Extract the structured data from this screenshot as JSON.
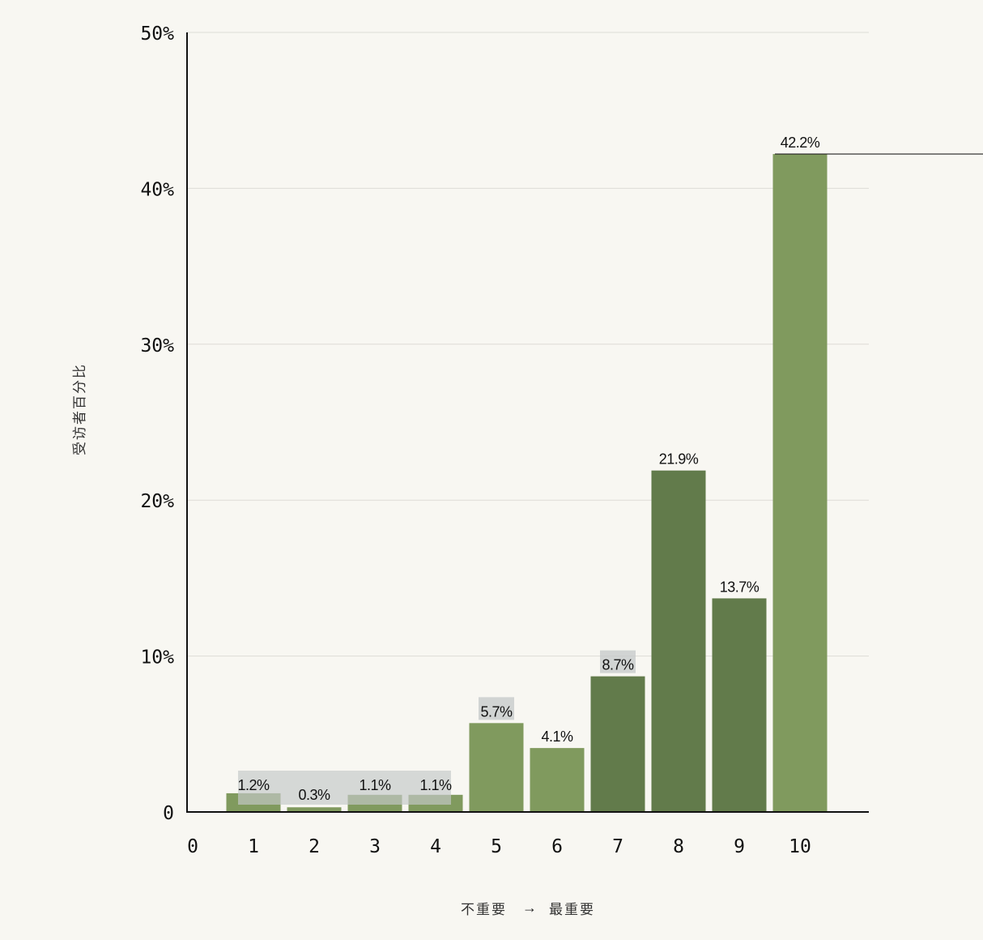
{
  "chart_data": {
    "type": "bar",
    "categories": [
      "1",
      "2",
      "3",
      "4",
      "5",
      "6",
      "7",
      "8",
      "9",
      "10"
    ],
    "values": [
      1.2,
      0.3,
      1.1,
      1.1,
      5.7,
      4.1,
      8.7,
      21.9,
      13.7,
      42.2
    ],
    "data_labels": [
      "1.2%",
      "0.3%",
      "1.1%",
      "1.1%",
      "5.7%",
      "4.1%",
      "8.7%",
      "21.9%",
      "13.7%",
      "42.2%"
    ],
    "x_ticks": [
      "0",
      "1",
      "2",
      "3",
      "4",
      "5",
      "6",
      "7",
      "8",
      "9",
      "10"
    ],
    "y_ticks": [
      {
        "value": 0,
        "label": "0"
      },
      {
        "value": 10,
        "label": "10%"
      },
      {
        "value": 20,
        "label": "20%"
      },
      {
        "value": 30,
        "label": "30%"
      },
      {
        "value": 40,
        "label": "40%"
      },
      {
        "value": 50,
        "label": "50%"
      }
    ],
    "ylim": [
      0,
      50
    ],
    "ylabel": "受访者百分比",
    "xlabel": {
      "left": "不重要",
      "arrow": "→",
      "right": "最重要"
    },
    "grid": "horizontal",
    "highlighted_categories": [
      "7",
      "8",
      "9"
    ],
    "label_highlight_categories": [
      "1",
      "2",
      "3",
      "4",
      "5",
      "7"
    ],
    "reference_line_value": 42.2,
    "colors": {
      "bar": "#809a5e",
      "bar_highlight": "#627b4b",
      "label_highlight": "#c4c8c8",
      "grid": "#dddcd6",
      "axis": "#111111"
    }
  }
}
